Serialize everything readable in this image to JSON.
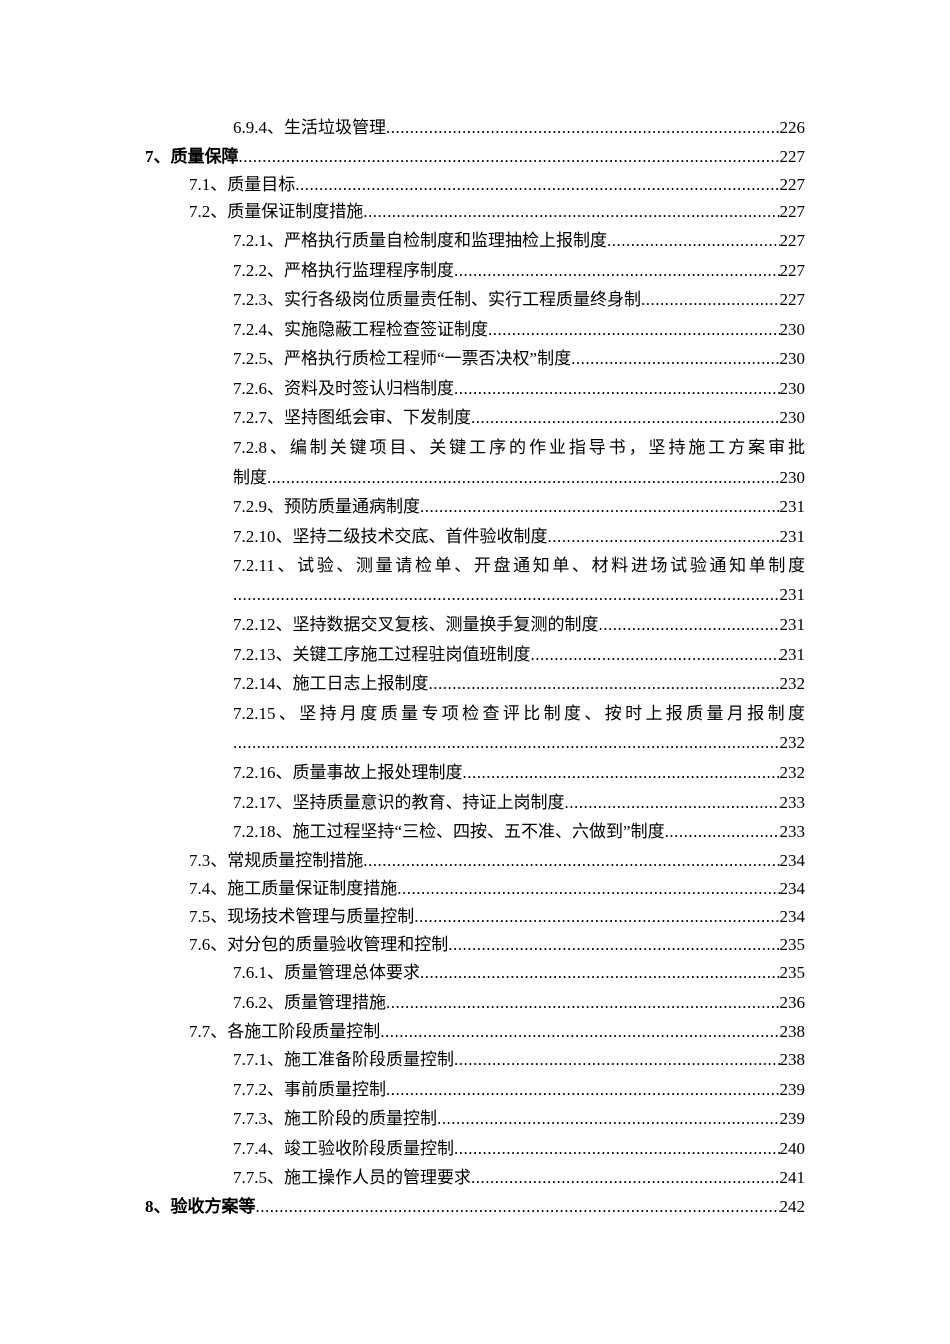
{
  "toc": [
    {
      "level": 3,
      "title": "6.9.4、生活垃圾管理",
      "page": "226"
    },
    {
      "level": 1,
      "title": "7、质量保障",
      "page": "227"
    },
    {
      "level": 2,
      "title": "7.1、质量目标",
      "page": "227"
    },
    {
      "level": 2,
      "title": "7.2、质量保证制度措施",
      "page": "227"
    },
    {
      "level": 3,
      "title": "7.2.1、严格执行质量自检制度和监理抽检上报制度",
      "page": "227"
    },
    {
      "level": 3,
      "title": "7.2.2、严格执行监理程序制度",
      "page": "227"
    },
    {
      "level": 3,
      "title": "7.2.3、实行各级岗位质量责任制、实行工程质量终身制",
      "page": "227"
    },
    {
      "level": 3,
      "title": "7.2.4、实施隐蔽工程检查签证制度",
      "page": "230"
    },
    {
      "level": 3,
      "title": "7.2.5、严格执行质检工程师“一票否决权”制度",
      "page": "230"
    },
    {
      "level": 3,
      "title": "7.2.6、资料及时签认归档制度",
      "page": "230"
    },
    {
      "level": 3,
      "title": "7.2.7、坚持图纸会审、下发制度",
      "page": "230"
    },
    {
      "level": 3,
      "title": "7.2.8、编制关键项目、关键工序的作业指导书，坚持施工方案审批",
      "title_cont": "制度",
      "page": "230"
    },
    {
      "level": 3,
      "title": "7.2.9、预防质量通病制度",
      "page": "231"
    },
    {
      "level": 3,
      "title": "7.2.10、坚持二级技术交底、首件验收制度",
      "page": "231"
    },
    {
      "level": 3,
      "title": "7.2.11、试验、测量请检单、开盘通知单、材料进场试验通知单制度",
      "title_cont": "",
      "page": "231"
    },
    {
      "level": 3,
      "title": "7.2.12、坚持数据交叉复核、测量换手复测的制度",
      "page": "231"
    },
    {
      "level": 3,
      "title": "7.2.13、关键工序施工过程驻岗值班制度",
      "page": "231"
    },
    {
      "level": 3,
      "title": "7.2.14、施工日志上报制度",
      "page": "232"
    },
    {
      "level": 3,
      "title": "7.2.15、坚持月度质量专项检查评比制度、按时上报质量月报制度",
      "title_cont": "",
      "page": "232"
    },
    {
      "level": 3,
      "title": "7.2.16、质量事故上报处理制度",
      "page": "232"
    },
    {
      "level": 3,
      "title": "7.2.17、坚持质量意识的教育、持证上岗制度",
      "page": "233"
    },
    {
      "level": 3,
      "title": "7.2.18、施工过程坚持“三检、四按、五不准、六做到”制度",
      "page": "233"
    },
    {
      "level": 2,
      "title": "7.3、常规质量控制措施",
      "page": "234"
    },
    {
      "level": 2,
      "title": "7.4、施工质量保证制度措施",
      "page": "234"
    },
    {
      "level": 2,
      "title": "7.5、现场技术管理与质量控制",
      "page": "234"
    },
    {
      "level": 2,
      "title": "7.6、对分包的质量验收管理和控制",
      "page": "235"
    },
    {
      "level": 3,
      "title": "7.6.1、质量管理总体要求",
      "page": "235"
    },
    {
      "level": 3,
      "title": "7.6.2、质量管理措施",
      "page": "236"
    },
    {
      "level": 2,
      "title": "7.7、各施工阶段质量控制",
      "page": "238"
    },
    {
      "level": 3,
      "title": "7.7.1、施工准备阶段质量控制",
      "page": "238"
    },
    {
      "level": 3,
      "title": "7.7.2、事前质量控制",
      "page": "239"
    },
    {
      "level": 3,
      "title": "7.7.3、施工阶段的质量控制",
      "page": "239"
    },
    {
      "level": 3,
      "title": "7.7.4、竣工验收阶段质量控制",
      "page": "240"
    },
    {
      "level": 3,
      "title": "7.7.5、施工操作人员的管理要求",
      "page": "241"
    },
    {
      "level": 1,
      "title": "8、验收方案等",
      "page": "242"
    }
  ]
}
